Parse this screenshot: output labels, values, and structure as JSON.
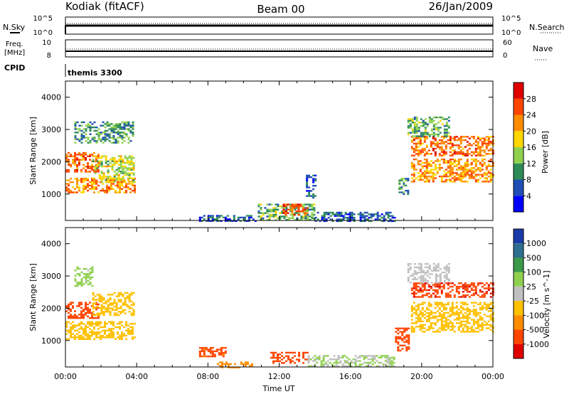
{
  "header": {
    "station": "Kodiak (fitACF)",
    "beam": "Beam 00",
    "date": "26/Jan/2009"
  },
  "strip_labels": {
    "nsky": "N.Sky",
    "nsearch": "N.Search",
    "freq_line1": "Freq.",
    "freq_line2": "[MHz]",
    "nave": "Nave",
    "cpid": "CPID",
    "cpid_value": "themis 3300"
  },
  "strip_ticks": {
    "noise_top": "10^5",
    "noise_bottom": "10^0",
    "freq_top": "10",
    "freq_bottom": "8",
    "nave_top": "60",
    "nave_bottom": "0"
  },
  "chart_data": [
    {
      "type": "heatmap",
      "title": "",
      "xlabel": "",
      "ylabel": "Slant Range [km]",
      "xlim": [
        0,
        24
      ],
      "ylim": [
        180,
        4500
      ],
      "x_ticks": [],
      "y_ticks": [
        "1000",
        "2000",
        "3000",
        "4000"
      ],
      "colorbar": {
        "label": "Power [dB]",
        "ticks": [
          "4",
          "8",
          "12",
          "16",
          "20",
          "24",
          "28"
        ],
        "colors": [
          "#0000ff",
          "#1f4fb4",
          "#2e8b57",
          "#8fd14f",
          "#ffd700",
          "#ff8c00",
          "#ff4500",
          "#e00000"
        ]
      },
      "echo_regions": [
        {
          "t": [
            0.0,
            3.9
          ],
          "r": [
            1050,
            1500
          ],
          "value": 22
        },
        {
          "t": [
            0.0,
            1.8
          ],
          "r": [
            1700,
            2300
          ],
          "value": 24
        },
        {
          "t": [
            1.5,
            3.8
          ],
          "r": [
            1400,
            2200
          ],
          "value": 16
        },
        {
          "t": [
            0.5,
            3.8
          ],
          "r": [
            2600,
            3250
          ],
          "value": 10
        },
        {
          "t": [
            7.5,
            10.8
          ],
          "r": [
            180,
            350
          ],
          "value": 6
        },
        {
          "t": [
            10.8,
            14.0
          ],
          "r": [
            180,
            700
          ],
          "value": 12
        },
        {
          "t": [
            12.2,
            13.6
          ],
          "r": [
            350,
            700
          ],
          "value": 26
        },
        {
          "t": [
            14.0,
            18.5
          ],
          "r": [
            180,
            450
          ],
          "value": 7
        },
        {
          "t": [
            13.5,
            14.0
          ],
          "r": [
            900,
            1600
          ],
          "value": 6
        },
        {
          "t": [
            18.7,
            19.2
          ],
          "r": [
            1000,
            1500
          ],
          "value": 10
        },
        {
          "t": [
            19.4,
            24.0
          ],
          "r": [
            2200,
            2800
          ],
          "value": 24
        },
        {
          "t": [
            19.4,
            24.0
          ],
          "r": [
            1400,
            2100
          ],
          "value": 22
        },
        {
          "t": [
            19.2,
            21.5
          ],
          "r": [
            2800,
            3400
          ],
          "value": 12
        }
      ]
    },
    {
      "type": "heatmap",
      "title": "",
      "xlabel": "Time UT",
      "ylabel": "Slant Range [km]",
      "xlim": [
        0,
        24
      ],
      "ylim": [
        180,
        4500
      ],
      "x_ticks": [
        "00:00",
        "04:00",
        "08:00",
        "12:00",
        "16:00",
        "20:00",
        "00:00"
      ],
      "y_ticks": [
        "1000",
        "2000",
        "3000",
        "4000"
      ],
      "colorbar": {
        "label": "Velocity [m s^-1]",
        "ticks": [
          "1000",
          "500",
          "100",
          "25",
          "-25",
          "-100",
          "-500",
          "-1000"
        ],
        "colors": [
          "#1a3aa8",
          "#2e6e8e",
          "#3a9a4a",
          "#8fd14f",
          "#c0c0c0",
          "#ffc000",
          "#ff8c00",
          "#ff4500",
          "#e00000"
        ]
      },
      "echo_regions": [
        {
          "t": [
            0.0,
            3.9
          ],
          "r": [
            1050,
            1600
          ],
          "value": 0
        },
        {
          "t": [
            0.0,
            1.8
          ],
          "r": [
            1700,
            2200
          ],
          "value": -300
        },
        {
          "t": [
            1.5,
            3.8
          ],
          "r": [
            1800,
            2500
          ],
          "value": 0
        },
        {
          "t": [
            0.5,
            1.5
          ],
          "r": [
            2700,
            3300
          ],
          "value": 150
        },
        {
          "t": [
            7.5,
            9.0
          ],
          "r": [
            500,
            800
          ],
          "value": -150
        },
        {
          "t": [
            8.5,
            10.5
          ],
          "r": [
            180,
            350
          ],
          "value": -60
        },
        {
          "t": [
            11.5,
            13.6
          ],
          "r": [
            300,
            650
          ],
          "value": -300
        },
        {
          "t": [
            13.6,
            18.5
          ],
          "r": [
            180,
            550
          ],
          "value": 100
        },
        {
          "t": [
            18.5,
            19.3
          ],
          "r": [
            700,
            1400
          ],
          "value": -200
        },
        {
          "t": [
            19.4,
            24.0
          ],
          "r": [
            2350,
            2800
          ],
          "value": -400
        },
        {
          "t": [
            19.4,
            24.0
          ],
          "r": [
            1300,
            2200
          ],
          "value": 0
        },
        {
          "t": [
            19.2,
            21.5
          ],
          "r": [
            2800,
            3400
          ],
          "value": 50
        }
      ]
    }
  ]
}
